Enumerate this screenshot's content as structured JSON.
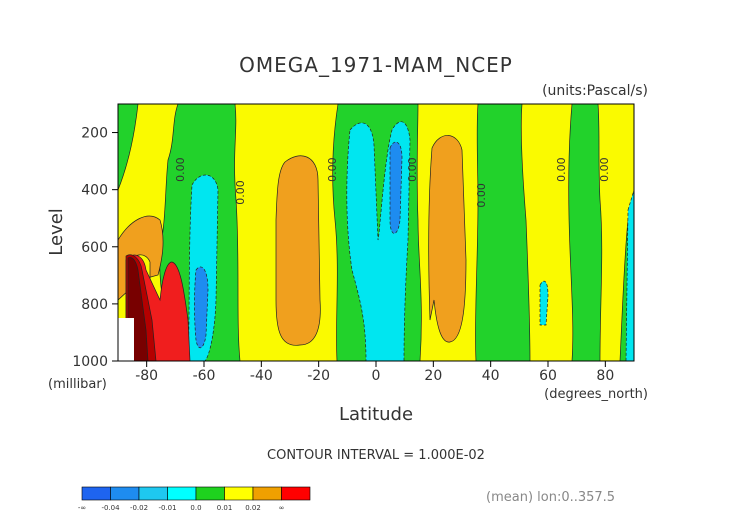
{
  "chart_data": {
    "type": "heatmap",
    "title": "OMEGA_1971-MAM_NCEP",
    "units_label": "(units:Pascal/s)",
    "ylabel": "Level",
    "y_units": "(millibar)",
    "xlabel": "Latitude",
    "x_units": "(degrees_north)",
    "xlim": [
      -90,
      90
    ],
    "ylim": [
      1000,
      100
    ],
    "x_ticks": [
      "-80",
      "-60",
      "-40",
      "-20",
      "0",
      "20",
      "40",
      "60",
      "80"
    ],
    "x_tick_values": [
      -80,
      -60,
      -40,
      -20,
      0,
      20,
      40,
      60,
      80
    ],
    "y_ticks": [
      "200",
      "400",
      "600",
      "800",
      "1000"
    ],
    "y_tick_values": [
      200,
      400,
      600,
      800,
      1000
    ],
    "contour_interval_text": "CONTOUR INTERVAL = 1.000E-02",
    "footer_note": "(mean) lon:0..357.5",
    "contour_labels": [
      {
        "text": "0.00",
        "lat": -67,
        "lev": 330
      },
      {
        "text": "0.00",
        "lat": -46,
        "lev": 410
      },
      {
        "text": "0.00",
        "lat": -14,
        "lev": 330
      },
      {
        "text": "0.00",
        "lat": 14,
        "lev": 330
      },
      {
        "text": "0.00",
        "lat": 38,
        "lev": 420
      },
      {
        "text": "0.00",
        "lat": 66,
        "lev": 330
      },
      {
        "text": "0.00",
        "lat": 81,
        "lev": 330
      }
    ],
    "colorbar": {
      "labels": [
        "-∞",
        "-0.04",
        "-0.02",
        "-0.01",
        "0.0",
        "0.01",
        "0.02",
        "∞"
      ],
      "colors": [
        "#1e64f0",
        "#1e8cf0",
        "#1ec8f0",
        "#00ffff",
        "#1ed21e",
        "#ffff00",
        "#f0a000",
        "#ff0000"
      ]
    },
    "levels_colors": {
      "green": "#22d22b",
      "yellow": "#fafa00",
      "orange": "#f0a01e",
      "cyan": "#00e6f0",
      "lightblue": "#1eb4ff",
      "blue": "#1e8cf0",
      "red": "#f01e1e",
      "darkred": "#b40000",
      "maroon": "#780000"
    }
  }
}
